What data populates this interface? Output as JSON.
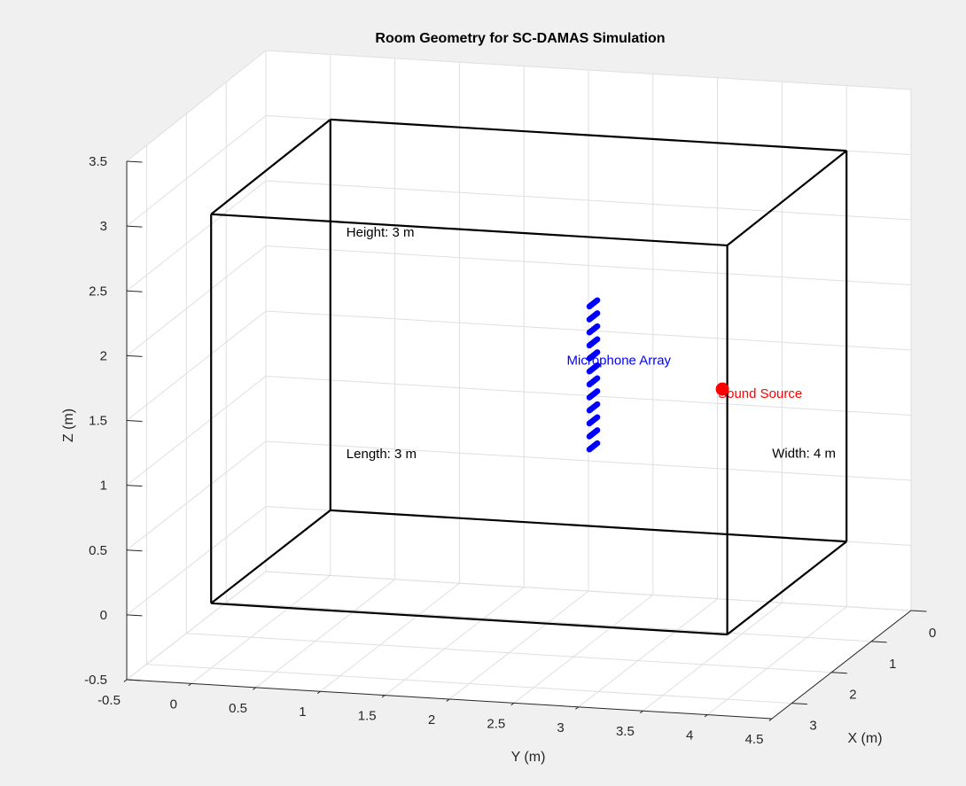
{
  "chart_data": {
    "type": "scatter3d",
    "title": "Room Geometry for SC-DAMAS Simulation",
    "xlabel": "X (m)",
    "ylabel": "Y (m)",
    "zlabel": "Z (m)",
    "xlim": [
      0,
      3.5
    ],
    "ylim": [
      -0.5,
      4.5
    ],
    "zlim": [
      -0.5,
      3.5
    ],
    "xticks": [
      "0",
      "1",
      "2",
      "3"
    ],
    "yticks": [
      "-0.5",
      "0",
      "0.5",
      "1",
      "1.5",
      "2",
      "2.5",
      "3",
      "3.5",
      "4",
      "4.5"
    ],
    "zticks": [
      "-0.5",
      "0",
      "0.5",
      "1",
      "1.5",
      "2",
      "2.5",
      "3",
      "3.5"
    ],
    "grid": true,
    "room": {
      "length": 3,
      "width": 4,
      "height": 3,
      "color": "#000000"
    },
    "mic_array": {
      "label": "Microphone Array",
      "x_range": [
        1.4,
        1.6
      ],
      "y": 2.5,
      "z_range": [
        1.0,
        2.1
      ],
      "rows": 12,
      "cols": 11,
      "color": "#0000ff"
    },
    "source": {
      "label": "Sound Source",
      "x": 1.5,
      "y": 3.5,
      "z": 1.5,
      "color": "#ff0000"
    },
    "annotations": [
      {
        "id": "length",
        "text": "Length: 3 m",
        "x": 0,
        "y": 0,
        "z": 0.4
      },
      {
        "id": "width",
        "text": "Width: 4 m",
        "x": 0,
        "y": 3.3,
        "z": 0.6
      },
      {
        "id": "height",
        "text": "Height: 3 m",
        "x": 0,
        "y": 0,
        "z": 2.1
      }
    ]
  }
}
